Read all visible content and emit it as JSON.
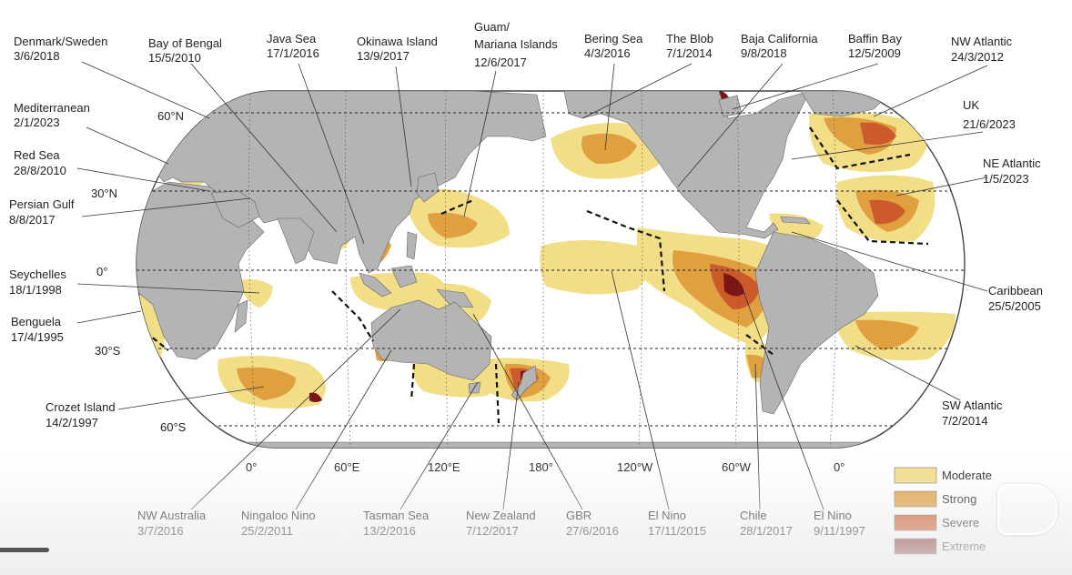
{
  "map": {
    "latitude_labels": [
      "60°N",
      "30°N",
      "0°",
      "30°S",
      "60°S"
    ],
    "longitude_labels": [
      "0°",
      "60°E",
      "120°E",
      "180°",
      "120°W",
      "60°W",
      "0°"
    ]
  },
  "events": [
    {
      "name": "Denmark/Sweden",
      "date": "3/6/2018"
    },
    {
      "name": "Bay of Bengal",
      "date": "15/5/2010"
    },
    {
      "name": "Java Sea",
      "date": "17/1/2016"
    },
    {
      "name": "Okinawa Island",
      "date": "13/9/2017"
    },
    {
      "name": "Guam/",
      "name2": "Mariana Islands",
      "date": "12/6/2017"
    },
    {
      "name": "Bering Sea",
      "date": "4/3/2016"
    },
    {
      "name": "The Blob",
      "date": "7/1/2014"
    },
    {
      "name": "Baja California",
      "date": "9/8/2018"
    },
    {
      "name": "Baffin Bay",
      "date": "12/5/2009"
    },
    {
      "name": "NW Atlantic",
      "date": "24/3/2012"
    },
    {
      "name": "Mediterranean",
      "date": "2/1/2023"
    },
    {
      "name": "UK",
      "date": "21/6/2023"
    },
    {
      "name": "Red Sea",
      "date": "28/8/2010"
    },
    {
      "name": "NE Atlantic",
      "date": "1/5/2023"
    },
    {
      "name": "Persian Gulf",
      "date": "8/8/2017"
    },
    {
      "name": "Seychelles",
      "date": "18/1/1998"
    },
    {
      "name": "Caribbean",
      "date": "25/5/2005"
    },
    {
      "name": "Benguela",
      "date": "17/4/1995"
    },
    {
      "name": "Crozet Island",
      "date": "14/2/1997"
    },
    {
      "name": "SW Atlantic",
      "date": "7/2/2014"
    },
    {
      "name": "NW Australia",
      "date": "3/7/2016"
    },
    {
      "name": "Ningaloo Nino",
      "date": "25/2/2011"
    },
    {
      "name": "Tasman Sea",
      "date": "13/2/2016"
    },
    {
      "name": "New Zealand",
      "date": "7/12/2017"
    },
    {
      "name": "GBR",
      "date": "27/6/2016"
    },
    {
      "name": "El Nino",
      "date": "17/11/2015"
    },
    {
      "name": "Chile",
      "date": "28/1/2017"
    },
    {
      "name": "El Nino",
      "date": "9/11/1997"
    }
  ],
  "legend": [
    {
      "label": "Moderate",
      "color": "#f3de88"
    },
    {
      "label": "Strong",
      "color": "#e0a040"
    },
    {
      "label": "Severe",
      "color": "#cc5a2a"
    },
    {
      "label": "Extreme",
      "color": "#7a1616"
    }
  ],
  "colors": {
    "ocean": "#ffffff",
    "land": "#b4b4b4",
    "moderate": "#f3de88",
    "strong": "#e0a040",
    "severe": "#cc5a2a",
    "extreme": "#7a1616"
  }
}
